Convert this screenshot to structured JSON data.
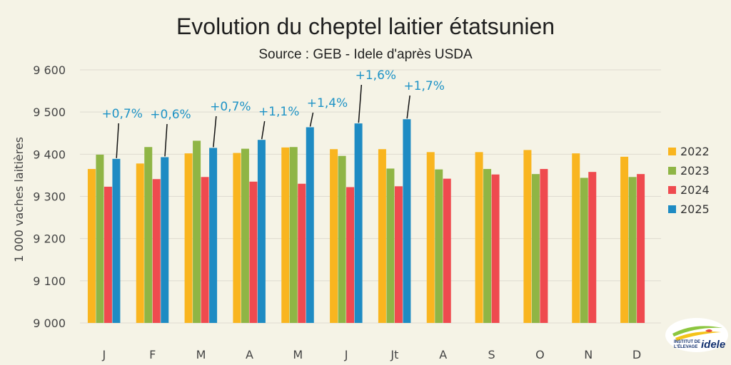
{
  "chart_data": {
    "type": "bar",
    "title": "Evolution du cheptel laitier étatsunien",
    "subtitle": "Source : GEB - Idele d'après USDA",
    "ylabel": "1 000  vaches laitières",
    "ylim": [
      9000,
      9600
    ],
    "yticks": [
      9000,
      9100,
      9200,
      9300,
      9400,
      9500,
      9600
    ],
    "ytick_labels": [
      "9 000",
      "9 100",
      "9 200",
      "9 300",
      "9 400",
      "9 500",
      "9 600"
    ],
    "categories": [
      "J",
      "F",
      "M",
      "A",
      "M",
      "J",
      "Jt",
      "A",
      "S",
      "O",
      "N",
      "D"
    ],
    "grid": true,
    "legend_position": "right",
    "series": [
      {
        "name": "2022",
        "color": "#f9b51f",
        "values": [
          9365,
          9378,
          9402,
          9403,
          9416,
          9412,
          9412,
          9405,
          9405,
          9410,
          9402,
          9394
        ]
      },
      {
        "name": "2023",
        "color": "#8fb545",
        "values": [
          9399,
          9417,
          9432,
          9413,
          9417,
          9396,
          9366,
          9364,
          9365,
          9353,
          9344,
          9346
        ]
      },
      {
        "name": "2024",
        "color": "#ef4a4f",
        "values": [
          9323,
          9341,
          9346,
          9335,
          9330,
          9322,
          9324,
          9342,
          9352,
          9365,
          9358,
          9353
        ]
      },
      {
        "name": "2025",
        "color": "#1e8bc3",
        "values": [
          9389,
          9393,
          9415,
          9434,
          9464,
          9473,
          9483,
          null,
          null,
          null,
          null,
          null
        ]
      }
    ],
    "annotations": [
      {
        "text": "+0,7%",
        "category_index": 0
      },
      {
        "text": "+0,6%",
        "category_index": 1
      },
      {
        "text": "+0,7%",
        "category_index": 2
      },
      {
        "text": "+1,1%",
        "category_index": 3
      },
      {
        "text": "+1,4%",
        "category_index": 4
      },
      {
        "text": "+1,6%",
        "category_index": 5
      },
      {
        "text": "+1,7%",
        "category_index": 6
      }
    ]
  },
  "logo": {
    "line1": "INSTITUT DE",
    "line2": "L'ÉLEVAGE",
    "name": "idele"
  }
}
